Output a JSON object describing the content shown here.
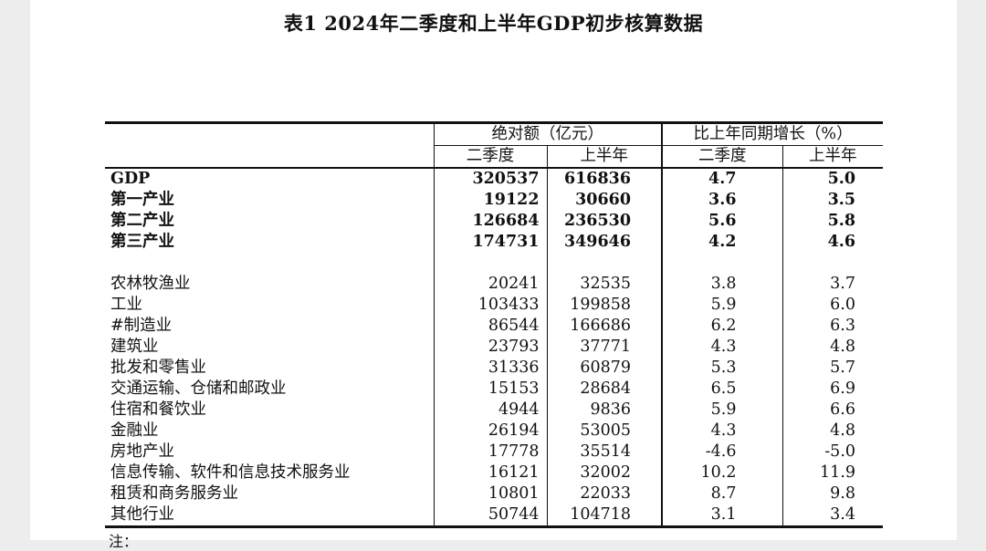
{
  "title": "表1    2024年二季度和上半年GDP初步核算数据",
  "header": {
    "group_abs": "绝对额（亿元）",
    "group_growth": "比上年同期增长（%）",
    "sub": [
      "二季度",
      "上半年",
      "二季度",
      "上半年"
    ]
  },
  "rows_primary": [
    {
      "name": "GDP",
      "q2": "320537",
      "h1": "616836",
      "g_q2": "4.7",
      "g_h1": "5.0"
    },
    {
      "name": "第一产业",
      "q2": "19122",
      "h1": "30660",
      "g_q2": "3.6",
      "g_h1": "3.5"
    },
    {
      "name": "第二产业",
      "q2": "126684",
      "h1": "236530",
      "g_q2": "5.6",
      "g_h1": "5.8"
    },
    {
      "name": "第三产业",
      "q2": "174731",
      "h1": "349646",
      "g_q2": "4.2",
      "g_h1": "4.6"
    }
  ],
  "rows_industry": [
    {
      "name": "农林牧渔业",
      "q2": "20241",
      "h1": "32535",
      "g_q2": "3.8",
      "g_h1": "3.7"
    },
    {
      "name": "工业",
      "q2": "103433",
      "h1": "199858",
      "g_q2": "5.9",
      "g_h1": "6.0"
    },
    {
      "name": "#制造业",
      "q2": "86544",
      "h1": "166686",
      "g_q2": "6.2",
      "g_h1": "6.3"
    },
    {
      "name": "建筑业",
      "q2": "23793",
      "h1": "37771",
      "g_q2": "4.3",
      "g_h1": "4.8"
    },
    {
      "name": "批发和零售业",
      "q2": "31336",
      "h1": "60879",
      "g_q2": "5.3",
      "g_h1": "5.7"
    },
    {
      "name": "交通运输、仓储和邮政业",
      "q2": "15153",
      "h1": "28684",
      "g_q2": "6.5",
      "g_h1": "6.9"
    },
    {
      "name": "住宿和餐饮业",
      "q2": "4944",
      "h1": "9836",
      "g_q2": "5.9",
      "g_h1": "6.6"
    },
    {
      "name": "金融业",
      "q2": "26194",
      "h1": "53005",
      "g_q2": "4.3",
      "g_h1": "4.8"
    },
    {
      "name": "房地产业",
      "q2": "17778",
      "h1": "35514",
      "g_q2": "-4.6",
      "g_h1": "-5.0"
    },
    {
      "name": "信息传输、软件和信息技术服务业",
      "q2": "16121",
      "h1": "32002",
      "g_q2": "10.2",
      "g_h1": "11.9"
    },
    {
      "name": "租赁和商务服务业",
      "q2": "10801",
      "h1": "22033",
      "g_q2": "8.7",
      "g_h1": "9.8"
    },
    {
      "name": "其他行业",
      "q2": "50744",
      "h1": "104718",
      "g_q2": "3.1",
      "g_h1": "3.4"
    }
  ],
  "note_label": "注："
}
